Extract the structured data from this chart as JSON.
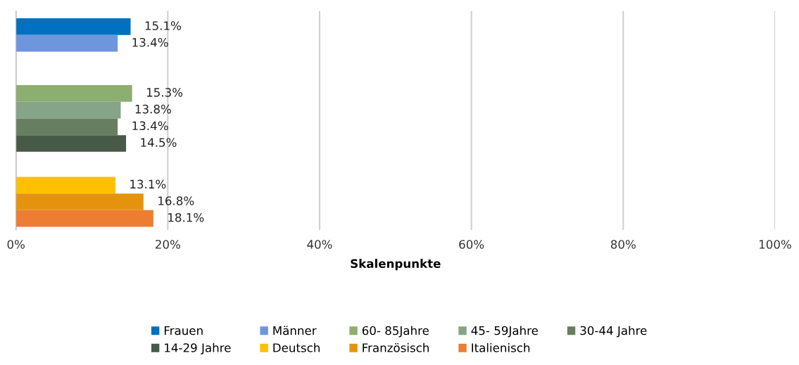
{
  "chart_data": {
    "type": "bar",
    "orientation": "horizontal",
    "categories": [
      null,
      null,
      null
    ],
    "xlabel": "Skalenpunkte",
    "xlim": [
      0,
      100
    ],
    "xticks": [
      {
        "value": 0,
        "label": "0%"
      },
      {
        "value": 20,
        "label": "20%"
      },
      {
        "value": 40,
        "label": "40%"
      },
      {
        "value": 60,
        "label": "60%"
      },
      {
        "value": 80,
        "label": "80%"
      },
      {
        "value": 100,
        "label": "100%"
      }
    ],
    "grid": "x",
    "legend": "bottom",
    "series": [
      {
        "name": "Frauen",
        "color": "#0070c0",
        "values": [
          15.1,
          null,
          null
        ],
        "value_labels": [
          "15.1%",
          null,
          null
        ]
      },
      {
        "name": "Männer",
        "color": "#6f96dc",
        "values": [
          13.4,
          null,
          null
        ],
        "value_labels": [
          "13.4%",
          null,
          null
        ]
      },
      {
        "name": "60- 85Jahre",
        "color": "#8cae70",
        "values": [
          null,
          15.3,
          null
        ],
        "value_labels": [
          null,
          "15.3%",
          null
        ]
      },
      {
        "name": "45- 59Jahre",
        "color": "#86a487",
        "values": [
          null,
          13.8,
          null
        ],
        "value_labels": [
          null,
          "13.8%",
          null
        ]
      },
      {
        "name": "30-44 Jahre",
        "color": "#687e60",
        "values": [
          null,
          13.4,
          null
        ],
        "value_labels": [
          null,
          "13.4%",
          null
        ]
      },
      {
        "name": "14-29 Jahre",
        "color": "#465a47",
        "values": [
          null,
          14.5,
          null
        ],
        "value_labels": [
          null,
          "14.5%",
          null
        ]
      },
      {
        "name": "Deutsch",
        "color": "#ffc000",
        "values": [
          null,
          null,
          13.1
        ],
        "value_labels": [
          null,
          null,
          "13.1%"
        ]
      },
      {
        "name": "Französisch",
        "color": "#e5930f",
        "values": [
          null,
          null,
          16.8
        ],
        "value_labels": [
          null,
          null,
          "16.8%"
        ]
      },
      {
        "name": "Italienisch",
        "color": "#ed7d31",
        "values": [
          null,
          null,
          18.1
        ],
        "value_labels": [
          null,
          null,
          "18.1%"
        ]
      }
    ]
  }
}
